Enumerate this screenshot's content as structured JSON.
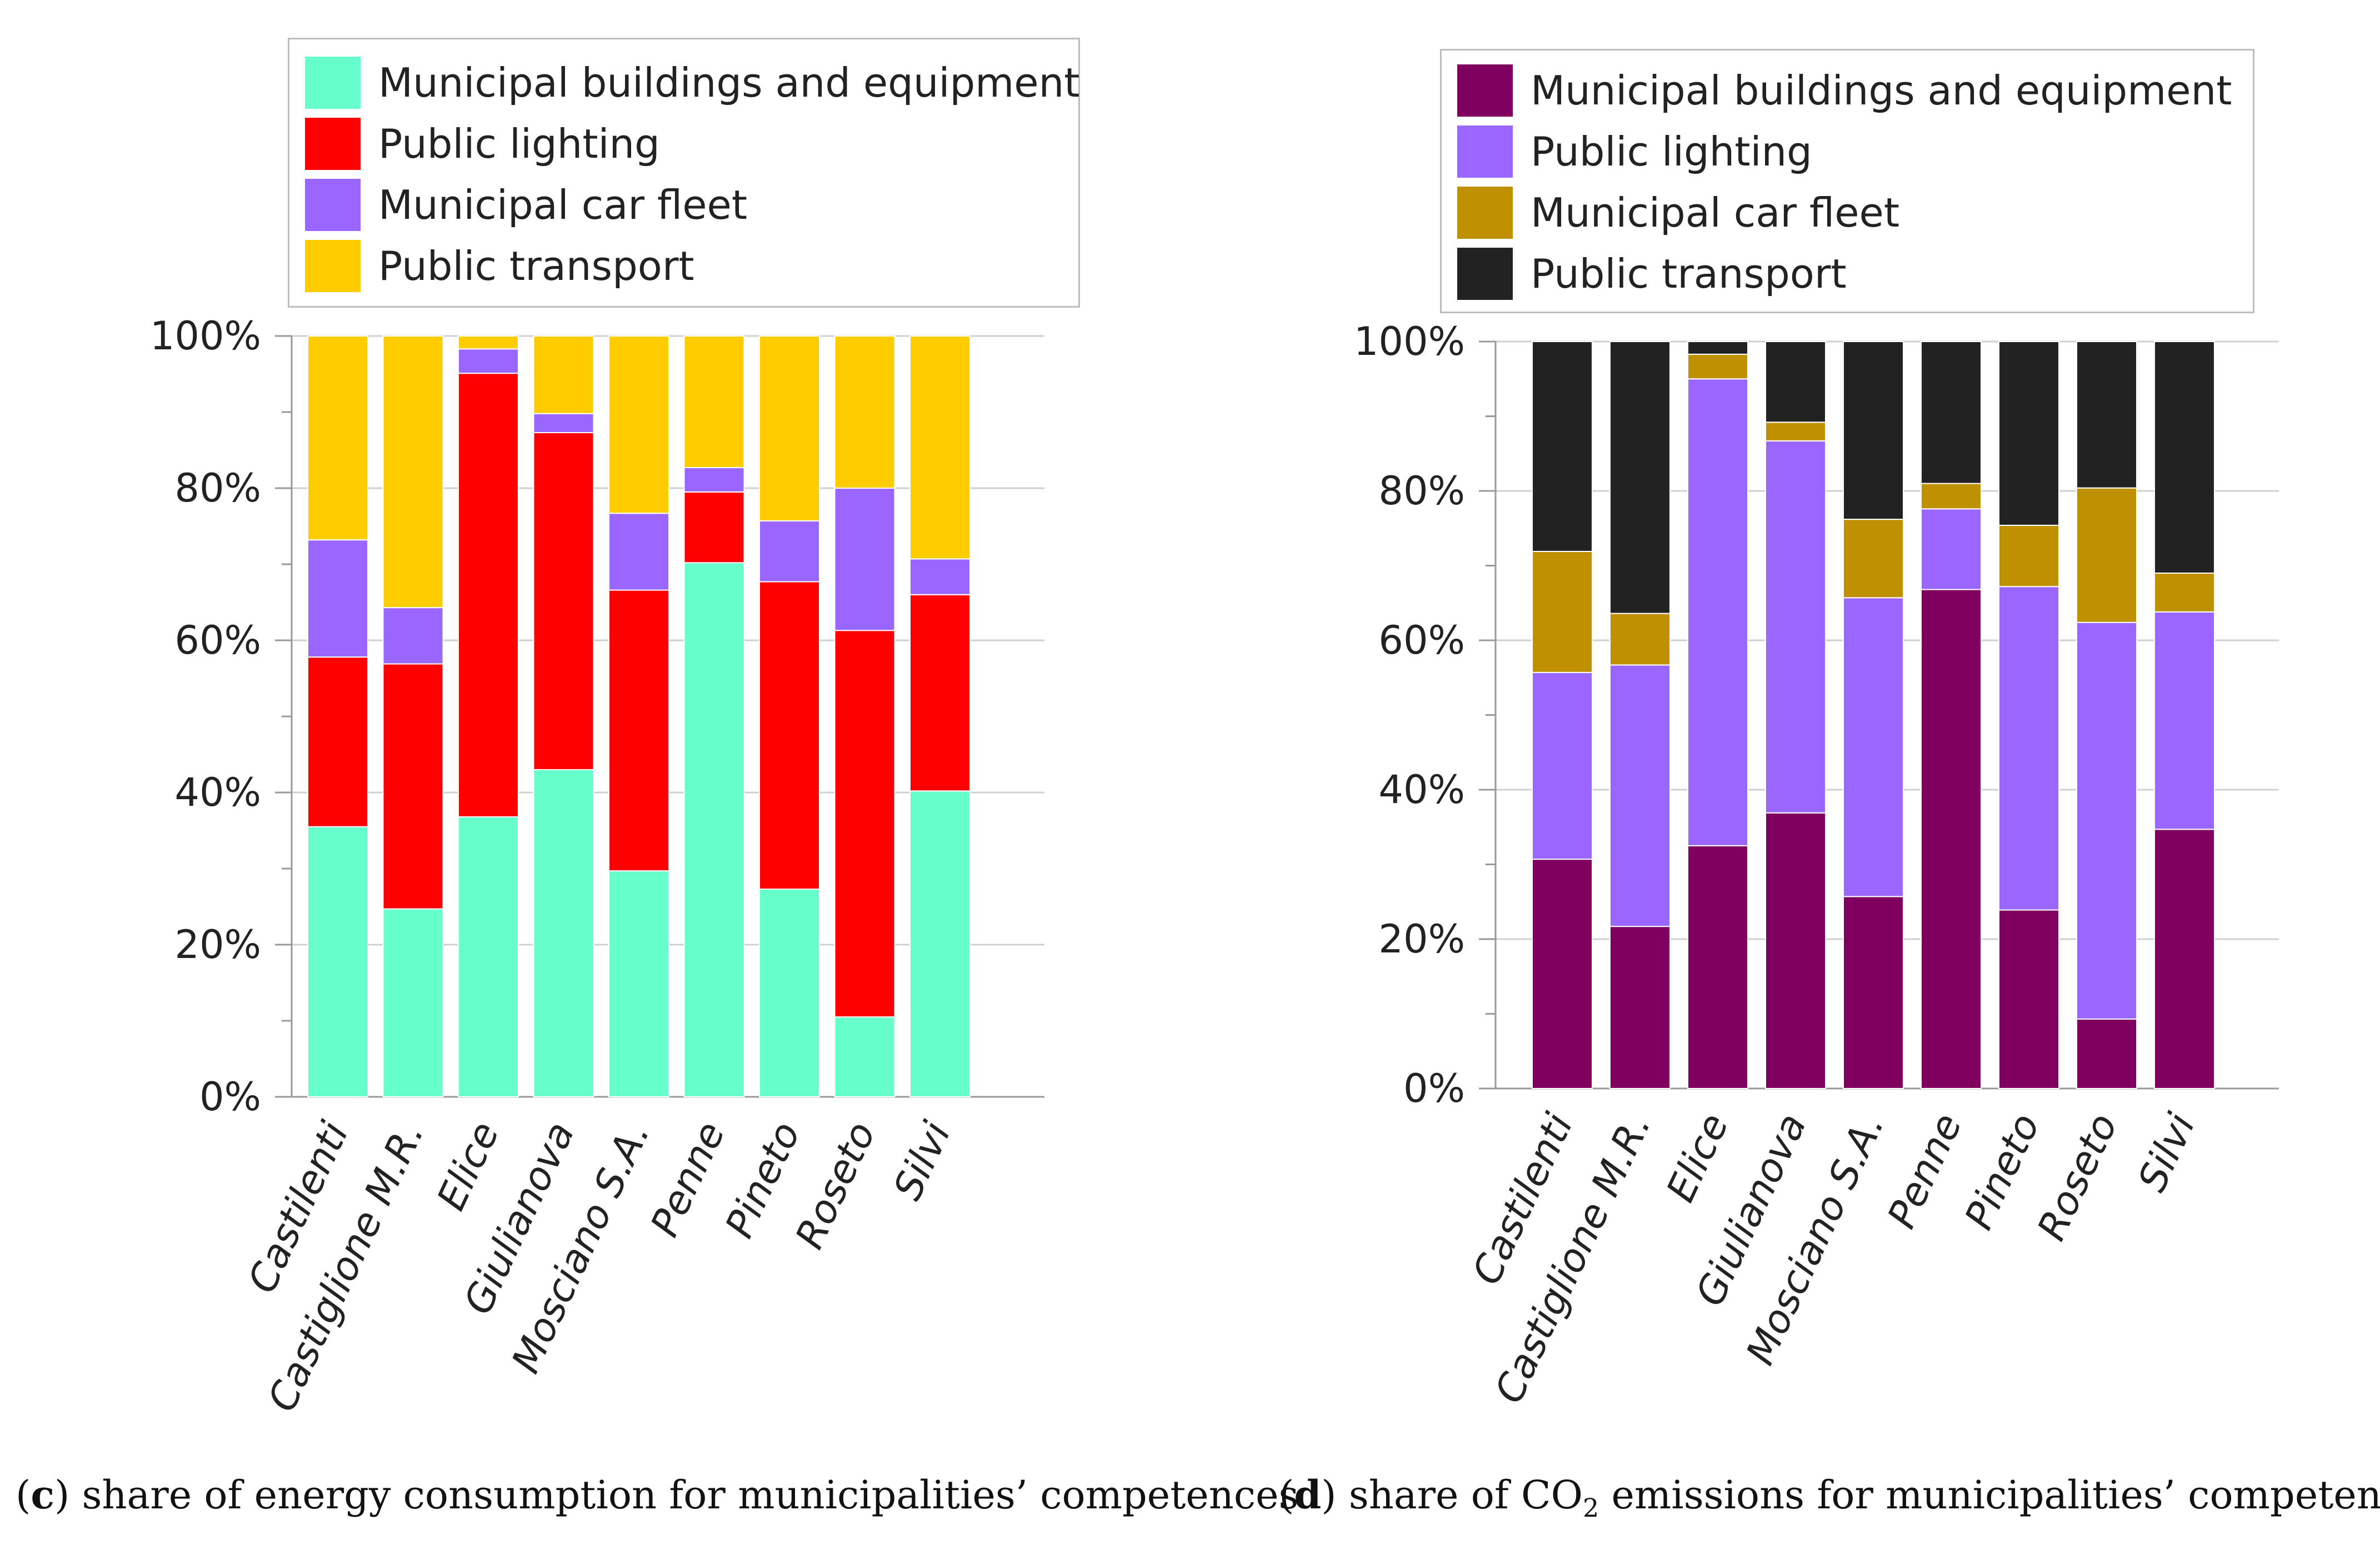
{
  "chart_data": [
    {
      "id": "c",
      "type": "bar",
      "stacked": true,
      "caption_letter": "c",
      "caption_text": " share of energy consumption for municipalities’ competences",
      "categories": [
        "Castilenti",
        "Castiglione M.R.",
        "Elice",
        "Giulianova",
        "Mosciano S.A.",
        "Penne",
        "Pineto",
        "Roseto",
        "Silvi"
      ],
      "series": [
        {
          "name": "Municipal buildings and equipment",
          "color": "#66FFCC",
          "values": [
            35.5,
            24.7,
            36.8,
            43.0,
            29.7,
            70.2,
            27.3,
            10.5,
            40.2
          ]
        },
        {
          "name": "Public lighting",
          "color": "#FF0000",
          "values": [
            22.3,
            32.2,
            58.3,
            44.3,
            36.9,
            9.3,
            40.4,
            50.8,
            25.8
          ]
        },
        {
          "name": "Municipal car fleet",
          "color": "#9966FF",
          "values": [
            15.4,
            7.4,
            3.2,
            2.5,
            10.1,
            3.2,
            8.0,
            18.7,
            4.7
          ]
        },
        {
          "name": "Public transport",
          "color": "#FFCC00",
          "values": [
            26.8,
            35.7,
            1.7,
            10.2,
            23.3,
            17.3,
            24.3,
            20.0,
            29.3
          ]
        }
      ],
      "ylim": [
        0,
        100
      ],
      "yticks": [
        "0%",
        "20%",
        "40%",
        "60%",
        "80%",
        "100%"
      ],
      "legend": "top"
    },
    {
      "id": "d",
      "type": "bar",
      "stacked": true,
      "caption_letter": "d",
      "caption_pre": " share of CO",
      "caption_sub": "2",
      "caption_post": " emissions for municipalities’ competences",
      "categories": [
        "Castilenti",
        "Castiglione M.R.",
        "Elice",
        "Giulianova",
        "Mosciano S.A.",
        "Penne",
        "Pineto",
        "Roseto",
        "Silvi"
      ],
      "series": [
        {
          "name": "Municipal buildings and equipment",
          "color": "#800060",
          "values": [
            30.7,
            21.7,
            32.5,
            36.9,
            25.7,
            66.8,
            23.9,
            9.3,
            34.7
          ]
        },
        {
          "name": "Public lighting",
          "color": "#9966FF",
          "values": [
            25.0,
            35.0,
            62.5,
            49.8,
            40.0,
            10.8,
            43.3,
            53.1,
            29.1
          ]
        },
        {
          "name": "Municipal car fleet",
          "color": "#BF9000",
          "values": [
            16.2,
            6.9,
            3.3,
            2.5,
            10.5,
            3.4,
            8.2,
            18.0,
            5.2
          ]
        },
        {
          "name": "Public transport",
          "color": "#222222",
          "values": [
            28.1,
            36.4,
            1.7,
            10.8,
            23.8,
            19.0,
            24.6,
            19.6,
            31.0
          ]
        }
      ],
      "ylim": [
        0,
        100
      ],
      "yticks": [
        "0%",
        "20%",
        "40%",
        "60%",
        "80%",
        "100%"
      ],
      "legend": "top"
    }
  ]
}
